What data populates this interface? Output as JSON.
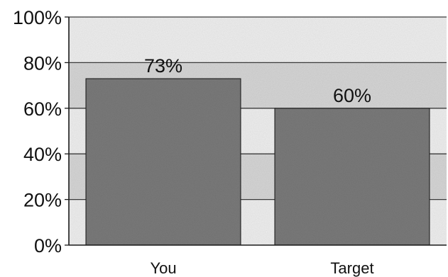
{
  "chart_data": {
    "type": "bar",
    "categories": [
      "You",
      "Target"
    ],
    "values": [
      73,
      60
    ],
    "data_labels": [
      "73%",
      "60%"
    ],
    "ylim": [
      0,
      100
    ],
    "yticks": [
      0,
      20,
      40,
      60,
      80,
      100
    ],
    "ytick_labels": [
      "0%",
      "20%",
      "40%",
      "60%",
      "80%",
      "100%"
    ],
    "title": "",
    "xlabel": "",
    "ylabel": "",
    "grid": true,
    "legend": "none",
    "colors": {
      "bar": "#7a7a7a",
      "plot_background": "#e6e6e6",
      "band_light": "#efefef",
      "band_dark": "#d6d6d6",
      "gridline": "#3a3a3a"
    }
  }
}
